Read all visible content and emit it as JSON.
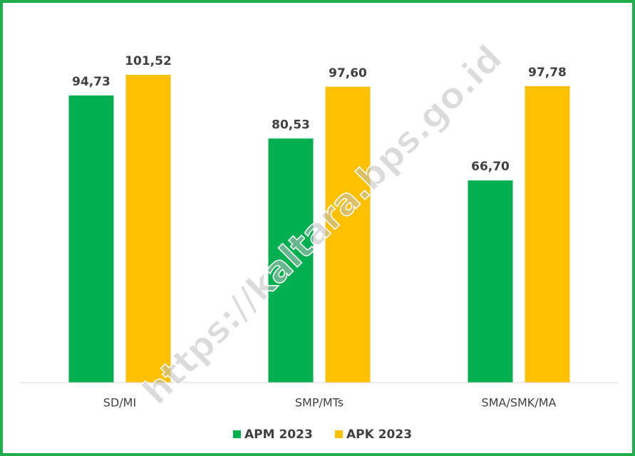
{
  "chart_data": {
    "type": "bar",
    "categories": [
      "SD/MI",
      "SMP/MTs",
      "SMA/SMK/MA"
    ],
    "series": [
      {
        "name": "APM 2023",
        "color": "#00b050",
        "values": [
          94.73,
          80.53,
          66.7
        ],
        "value_labels": [
          "94,73",
          "80,53",
          "66,70"
        ]
      },
      {
        "name": "APK 2023",
        "color": "#ffc000",
        "values": [
          101.52,
          97.6,
          97.78
        ],
        "value_labels": [
          "101,52",
          "97,60",
          "97,78"
        ]
      }
    ],
    "ylim": [
      0,
      110
    ],
    "legend": "bottom",
    "watermark": "https://kaltara.bps.go.id"
  }
}
